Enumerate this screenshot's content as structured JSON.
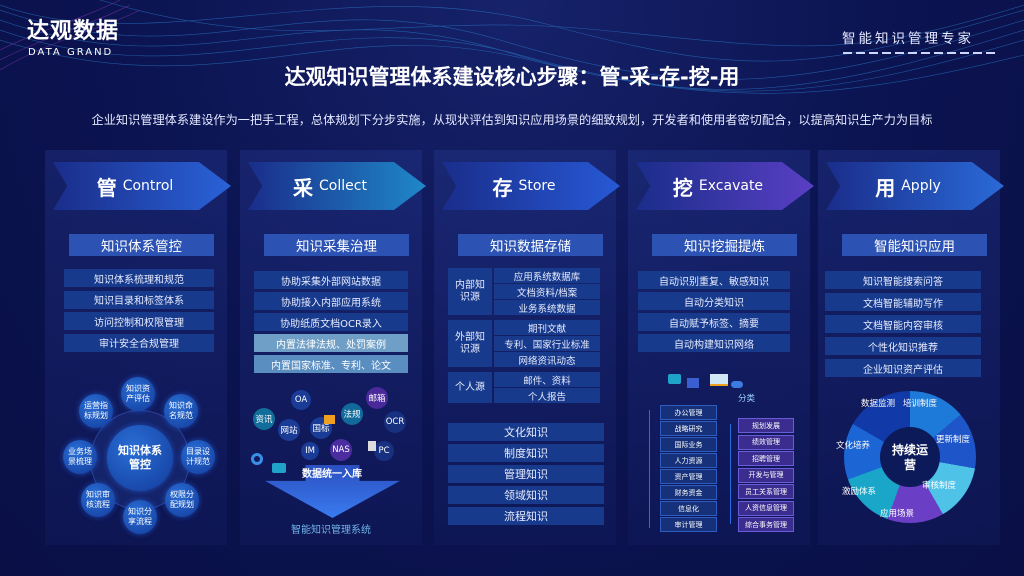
{
  "brand": {
    "name_cn": "达观数据",
    "name_en": "DATA GRAND",
    "tagline": "智能知识管理专家"
  },
  "title": "达观知识管理体系建设核心步骤：管-采-存-挖-用",
  "subtitle": "企业知识管理体系建设作为一把手工程，总体规划下分步实施，从现状评估到知识应用场景的细致规划，开发者和使用者密切配合，以提高知识生产力为目标",
  "columns": [
    {
      "char": "管",
      "en": "Control",
      "section": "知识体系管控",
      "color": "#2a62d8",
      "items": [
        "知识体系梳理和规范",
        "知识目录和标签体系",
        "访问控制和权限管理",
        "审计安全合规管理"
      ],
      "diagram": {
        "center": "知识体系管控",
        "nodes": [
          "知识资产评估",
          "知识命名规范",
          "目录设计规范",
          "权限分配规划",
          "知识分享流程",
          "知识审核流程",
          "业务场景梳理",
          "运营指标规划"
        ]
      }
    },
    {
      "char": "采",
      "en": "Collect",
      "section": "知识采集治理",
      "color": "#1f88c8",
      "items": [
        "协助采集外部网站数据",
        "协助接入内部应用系统",
        "协助纸质文档OCR录入",
        "内置法律法规、处罚案例",
        "内置国家标准、专利、论文"
      ],
      "diagram": {
        "sources": [
          "OA",
          "资讯",
          "网站",
          "国标",
          "IM",
          "NAS",
          "法规",
          "邮箱",
          "OCR",
          "PC"
        ],
        "arrow": "数据统一入库",
        "footer": "智能知识管理系统"
      }
    },
    {
      "char": "存",
      "en": "Store",
      "section": "知识数据存储",
      "color": "#2759d6",
      "groups": [
        {
          "label": "内部知识源",
          "items": [
            "应用系统数据库",
            "文档资料/档案",
            "业务系统数据"
          ]
        },
        {
          "label": "外部知识源",
          "items": [
            "期刊文献",
            "专利、国家行业标准",
            "网络资讯动态"
          ]
        },
        {
          "label": "个人源",
          "items": [
            "邮件、资料",
            "个人报告"
          ]
        }
      ],
      "items": [
        "文化知识",
        "制度知识",
        "管理知识",
        "领域知识",
        "流程知识"
      ]
    },
    {
      "char": "挖",
      "en": "Excavate",
      "section": "知识挖掘提炼",
      "color": "#5a3fc4",
      "items": [
        "自动识别重复、敏感知识",
        "自动分类知识",
        "自动赋予标签、摘要",
        "自动构建知识网络"
      ],
      "diagram": {
        "classify": "分类",
        "left": [
          "办公管理",
          "战略研究",
          "国际业务",
          "人力资源",
          "资产管理",
          "财务资金",
          "信息化",
          "审计管理"
        ],
        "right": [
          "规划发展",
          "绩效管理",
          "招聘管理",
          "开发与管理",
          "员工关系管理",
          "人资信息管理",
          "综合事务管理"
        ]
      }
    },
    {
      "char": "用",
      "en": "Apply",
      "section": "智能知识应用",
      "color": "#2a6ad8",
      "items": [
        "知识智能搜索问答",
        "文档智能辅助写作",
        "文档智能内容审核",
        "个性化知识推荐",
        "企业知识资产评估"
      ],
      "diagram": {
        "center": "持续运营",
        "segments": [
          "数据监测",
          "培训制度",
          "更新制度",
          "审核制度",
          "应用场景",
          "激励体系",
          "文化培养"
        ]
      }
    }
  ]
}
